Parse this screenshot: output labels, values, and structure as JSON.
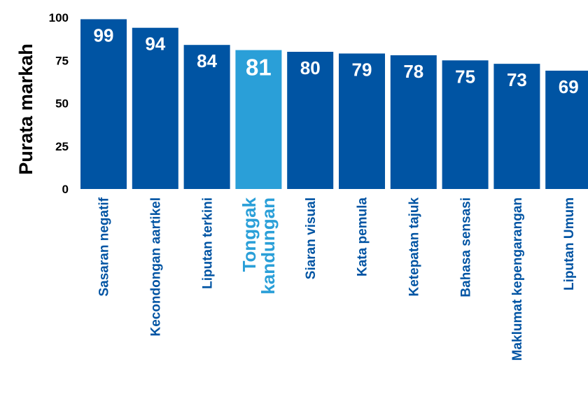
{
  "chart_data": {
    "type": "bar",
    "title": "",
    "xlabel": "",
    "ylabel": "Purata markah",
    "ylim": [
      0,
      100
    ],
    "yticks": [
      0,
      25,
      50,
      75,
      100
    ],
    "grid": false,
    "categories": [
      "Sasaran negatif",
      "Kecondongan aartikel",
      "Liputan terkini",
      "Tonggak kandungan",
      "Siaran visual",
      "Kata pemula",
      "Ketepatan tajuk",
      "Bahasa sensasi",
      "Maklumat kepengarangan",
      "Liputan Umum"
    ],
    "values": [
      99,
      94,
      84,
      81,
      80,
      79,
      78,
      75,
      73,
      69
    ],
    "highlight_index": 3,
    "colors": {
      "bar": "#0054a3",
      "highlight": "#2a9fd8",
      "value_label": "#ffffff",
      "axis_text": "#000000"
    }
  }
}
